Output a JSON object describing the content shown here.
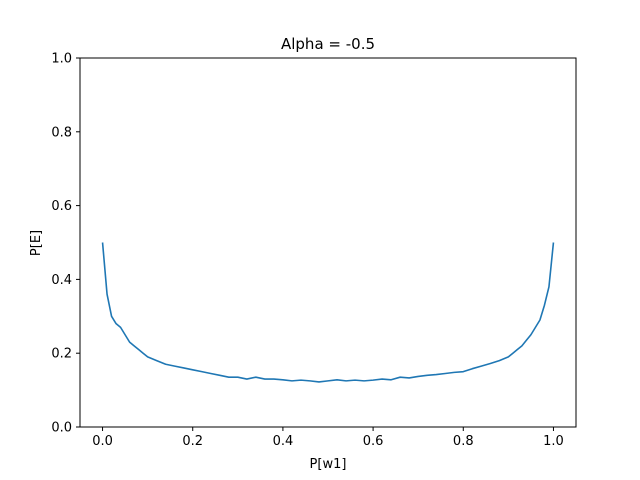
{
  "chart_data": {
    "type": "line",
    "title": "Alpha = -0.5",
    "xlabel": "P[w1]",
    "ylabel": "P[E]",
    "xlim": [
      -0.05,
      1.05
    ],
    "ylim": [
      0.0,
      1.0
    ],
    "xticks": [
      0.0,
      0.2,
      0.4,
      0.6,
      0.8,
      1.0
    ],
    "xtick_labels": [
      "0.0",
      "0.2",
      "0.4",
      "0.6",
      "0.8",
      "1.0"
    ],
    "yticks": [
      0.0,
      0.2,
      0.4,
      0.6,
      0.8,
      1.0
    ],
    "ytick_labels": [
      "0.0",
      "0.2",
      "0.4",
      "0.6",
      "0.8",
      "1.0"
    ],
    "grid": false,
    "series": [
      {
        "color": "#1f77b4",
        "x": [
          0.0,
          0.01,
          0.02,
          0.03,
          0.04,
          0.05,
          0.06,
          0.07,
          0.08,
          0.09,
          0.1,
          0.12,
          0.14,
          0.16,
          0.18,
          0.2,
          0.22,
          0.24,
          0.26,
          0.28,
          0.3,
          0.32,
          0.34,
          0.36,
          0.38,
          0.4,
          0.42,
          0.44,
          0.46,
          0.48,
          0.5,
          0.52,
          0.54,
          0.56,
          0.58,
          0.6,
          0.62,
          0.64,
          0.66,
          0.68,
          0.7,
          0.72,
          0.74,
          0.76,
          0.78,
          0.8,
          0.82,
          0.84,
          0.86,
          0.88,
          0.9,
          0.91,
          0.92,
          0.93,
          0.94,
          0.95,
          0.96,
          0.97,
          0.98,
          0.99,
          1.0
        ],
        "y": [
          0.5,
          0.36,
          0.3,
          0.28,
          0.27,
          0.25,
          0.23,
          0.22,
          0.21,
          0.2,
          0.19,
          0.18,
          0.17,
          0.165,
          0.16,
          0.155,
          0.15,
          0.145,
          0.14,
          0.135,
          0.135,
          0.13,
          0.135,
          0.13,
          0.13,
          0.128,
          0.125,
          0.127,
          0.125,
          0.122,
          0.125,
          0.128,
          0.125,
          0.127,
          0.125,
          0.127,
          0.13,
          0.128,
          0.135,
          0.133,
          0.137,
          0.14,
          0.142,
          0.145,
          0.148,
          0.15,
          0.158,
          0.165,
          0.172,
          0.18,
          0.19,
          0.2,
          0.21,
          0.22,
          0.235,
          0.25,
          0.27,
          0.29,
          0.33,
          0.38,
          0.5
        ]
      }
    ]
  }
}
